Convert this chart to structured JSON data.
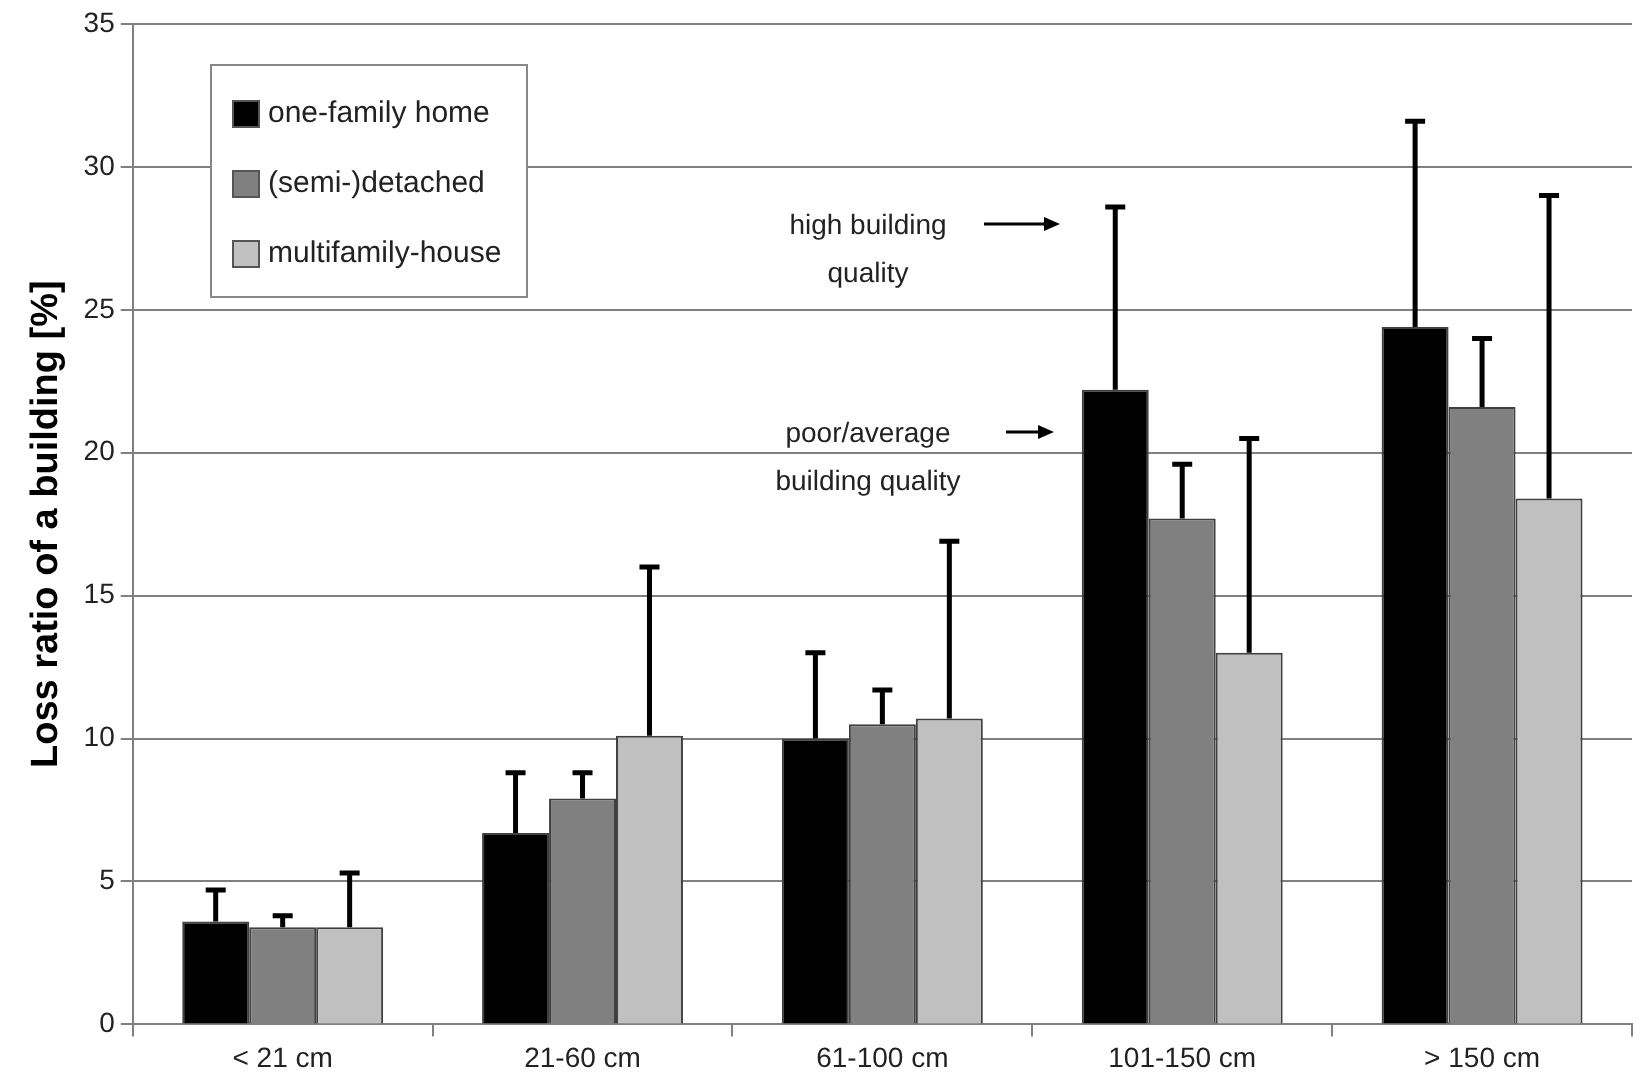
{
  "chart_data": {
    "type": "bar",
    "ylabel": "Loss ratio of a building [%]",
    "categories": [
      "< 21 cm",
      "21-60 cm",
      "61-100 cm",
      "101-150 cm",
      "> 150 cm"
    ],
    "series": [
      {
        "name": "one-family home",
        "color": "#000000",
        "values": [
          3.6,
          6.7,
          10.0,
          22.2,
          24.4
        ],
        "errors": [
          [
            3.6,
            4.7
          ],
          [
            6.7,
            8.8
          ],
          [
            10.0,
            13.0
          ],
          [
            22.2,
            28.6
          ],
          [
            24.4,
            31.6
          ]
        ]
      },
      {
        "name": "(semi-)detached",
        "color": "#808080",
        "values": [
          3.4,
          7.9,
          10.5,
          17.7,
          21.6
        ],
        "errors": [
          [
            3.4,
            3.8
          ],
          [
            7.9,
            8.8
          ],
          [
            10.5,
            11.7
          ],
          [
            17.7,
            19.6
          ],
          [
            21.6,
            24.0
          ]
        ]
      },
      {
        "name": "multifamily-house",
        "color": "#c0c0c0",
        "values": [
          3.4,
          10.1,
          10.7,
          13.0,
          18.4
        ],
        "errors": [
          [
            3.4,
            5.3
          ],
          [
            10.1,
            16.0
          ],
          [
            10.7,
            16.9
          ],
          [
            13.0,
            20.5
          ],
          [
            18.4,
            29.0
          ]
        ]
      }
    ],
    "ylim": [
      0,
      35
    ],
    "yticks": [
      0,
      5,
      10,
      15,
      20,
      25,
      30,
      35
    ],
    "grid": "y",
    "legend": "top left",
    "annotations": [
      "high building quality",
      "poor/average building quality"
    ]
  }
}
